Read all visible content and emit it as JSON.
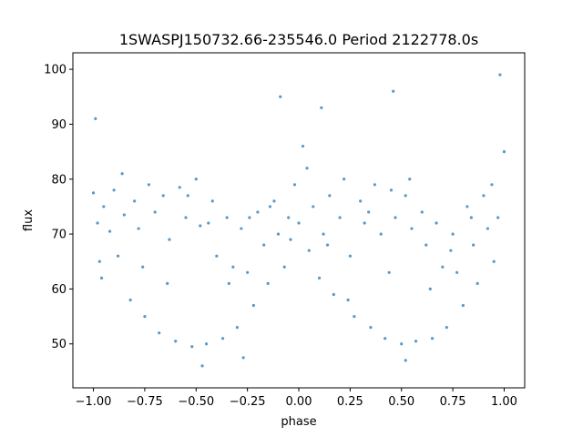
{
  "chart_data": {
    "type": "scatter",
    "title": "1SWASPJ150732.66-235546.0 Period 2122778.0s",
    "xlabel": "phase",
    "ylabel": "flux",
    "xlim": [
      -1.1,
      1.1
    ],
    "ylim": [
      42,
      103
    ],
    "xticks": [
      -1.0,
      -0.75,
      -0.5,
      -0.25,
      0.0,
      0.25,
      0.5,
      0.75,
      1.0
    ],
    "xtick_labels": [
      "−1.00",
      "−0.75",
      "−0.50",
      "−0.25",
      "0.00",
      "0.25",
      "0.50",
      "0.75",
      "1.00"
    ],
    "yticks": [
      50,
      60,
      70,
      80,
      90,
      100
    ],
    "ytick_labels": [
      "50",
      "60",
      "70",
      "80",
      "90",
      "100"
    ],
    "grid": false,
    "marker_color": "#1f77b4",
    "series": [
      {
        "points": [
          [
            -1.0,
            77.5
          ],
          [
            -0.98,
            72.0
          ],
          [
            -0.97,
            65.0
          ],
          [
            -0.95,
            75.0
          ],
          [
            -0.92,
            70.5
          ],
          [
            -0.9,
            78.0
          ],
          [
            -0.88,
            66.0
          ],
          [
            -0.85,
            73.5
          ],
          [
            -0.82,
            58.0
          ],
          [
            -0.8,
            76.0
          ],
          [
            -0.78,
            71.0
          ],
          [
            -0.75,
            55.0
          ],
          [
            -0.73,
            79.0
          ],
          [
            -0.7,
            74.0
          ],
          [
            -0.68,
            52.0
          ],
          [
            -0.66,
            77.0
          ],
          [
            -0.63,
            69.0
          ],
          [
            -0.6,
            50.5
          ],
          [
            -0.58,
            78.5
          ],
          [
            -0.55,
            73.0
          ],
          [
            -0.52,
            49.5
          ],
          [
            -0.5,
            80.0
          ],
          [
            -0.48,
            71.5
          ],
          [
            -0.45,
            50.0
          ],
          [
            -0.42,
            76.0
          ],
          [
            -0.4,
            66.0
          ],
          [
            -0.37,
            51.0
          ],
          [
            -0.35,
            73.0
          ],
          [
            -0.32,
            64.0
          ],
          [
            -0.3,
            53.0
          ],
          [
            -0.28,
            71.0
          ],
          [
            -0.25,
            63.0
          ],
          [
            -0.22,
            57.0
          ],
          [
            -0.2,
            74.0
          ],
          [
            -0.17,
            68.0
          ],
          [
            -0.15,
            61.0
          ],
          [
            -0.12,
            76.0
          ],
          [
            -0.1,
            70.0
          ],
          [
            -0.07,
            64.0
          ],
          [
            -0.05,
            73.0
          ],
          [
            -0.02,
            79.0
          ],
          [
            0.0,
            72.0
          ],
          [
            0.02,
            86.0
          ],
          [
            0.05,
            67.0
          ],
          [
            0.07,
            75.0
          ],
          [
            0.1,
            62.0
          ],
          [
            0.12,
            70.0
          ],
          [
            0.15,
            77.0
          ],
          [
            0.17,
            59.0
          ],
          [
            0.2,
            73.0
          ],
          [
            0.22,
            80.0
          ],
          [
            0.25,
            66.0
          ],
          [
            0.27,
            55.0
          ],
          [
            0.3,
            76.0
          ],
          [
            0.32,
            72.0
          ],
          [
            0.35,
            53.0
          ],
          [
            0.37,
            79.0
          ],
          [
            0.4,
            70.0
          ],
          [
            0.42,
            51.0
          ],
          [
            0.45,
            78.0
          ],
          [
            0.47,
            73.0
          ],
          [
            0.5,
            50.0
          ],
          [
            0.52,
            77.0
          ],
          [
            0.55,
            71.0
          ],
          [
            0.57,
            50.5
          ],
          [
            0.6,
            74.0
          ],
          [
            0.62,
            68.0
          ],
          [
            0.65,
            51.0
          ],
          [
            0.67,
            72.0
          ],
          [
            0.7,
            64.0
          ],
          [
            0.72,
            53.0
          ],
          [
            0.75,
            70.0
          ],
          [
            0.77,
            63.0
          ],
          [
            0.8,
            57.0
          ],
          [
            0.82,
            75.0
          ],
          [
            0.85,
            68.0
          ],
          [
            0.87,
            61.0
          ],
          [
            0.9,
            77.0
          ],
          [
            0.92,
            71.0
          ],
          [
            0.95,
            65.0
          ],
          [
            0.97,
            73.0
          ],
          [
            1.0,
            85.0
          ],
          [
            -0.96,
            62.0
          ],
          [
            -0.86,
            81.0
          ],
          [
            -0.76,
            64.0
          ],
          [
            -0.64,
            61.0
          ],
          [
            -0.54,
            77.0
          ],
          [
            -0.44,
            72.0
          ],
          [
            -0.34,
            61.0
          ],
          [
            -0.24,
            73.0
          ],
          [
            -0.14,
            75.0
          ],
          [
            -0.04,
            69.0
          ],
          [
            0.04,
            82.0
          ],
          [
            0.14,
            68.0
          ],
          [
            0.24,
            58.0
          ],
          [
            0.34,
            74.0
          ],
          [
            0.44,
            63.0
          ],
          [
            0.54,
            80.0
          ],
          [
            0.64,
            60.0
          ],
          [
            0.74,
            67.0
          ],
          [
            0.84,
            73.0
          ],
          [
            0.94,
            79.0
          ],
          [
            -0.99,
            91.0
          ],
          [
            0.46,
            96.0
          ],
          [
            -0.09,
            95.0
          ],
          [
            0.98,
            99.0
          ],
          [
            0.11,
            93.0
          ],
          [
            -0.47,
            46.0
          ],
          [
            0.52,
            47.0
          ],
          [
            -0.27,
            47.5
          ]
        ]
      }
    ]
  }
}
